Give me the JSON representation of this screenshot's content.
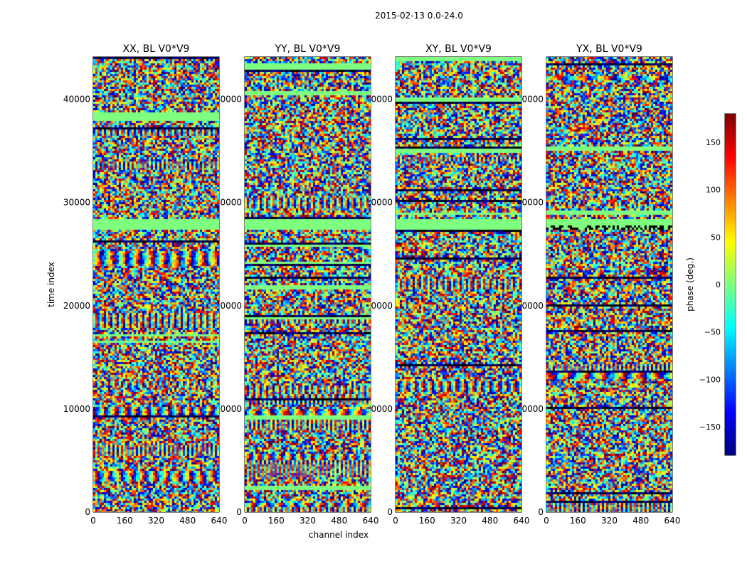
{
  "chart_data": {
    "type": "heatmap",
    "title": "2015-02-13 0.0-24.0",
    "xlabel": "channel index",
    "ylabel": "time index",
    "xlim": [
      0,
      640
    ],
    "ylim": [
      0,
      44100
    ],
    "xticks": [
      0,
      160,
      320,
      480,
      640
    ],
    "yticks": [
      0,
      10000,
      20000,
      30000,
      40000
    ],
    "panels": [
      {
        "title": "XX, BL V0*V9"
      },
      {
        "title": "YY, BL V0*V9"
      },
      {
        "title": "XY, BL V0*V9"
      },
      {
        "title": "YX, BL V0*V9"
      }
    ],
    "colorbar": {
      "label": "phase (deg.)",
      "range": [
        -180,
        180
      ],
      "ticks": [
        -150,
        -100,
        -50,
        0,
        50,
        100,
        150
      ],
      "tick_labels": [
        "−150",
        "−100",
        "−50",
        "0",
        "50",
        "100",
        "150"
      ],
      "colormap": "jet"
    },
    "flagged_band_time_range": [
      27500,
      28500
    ]
  }
}
